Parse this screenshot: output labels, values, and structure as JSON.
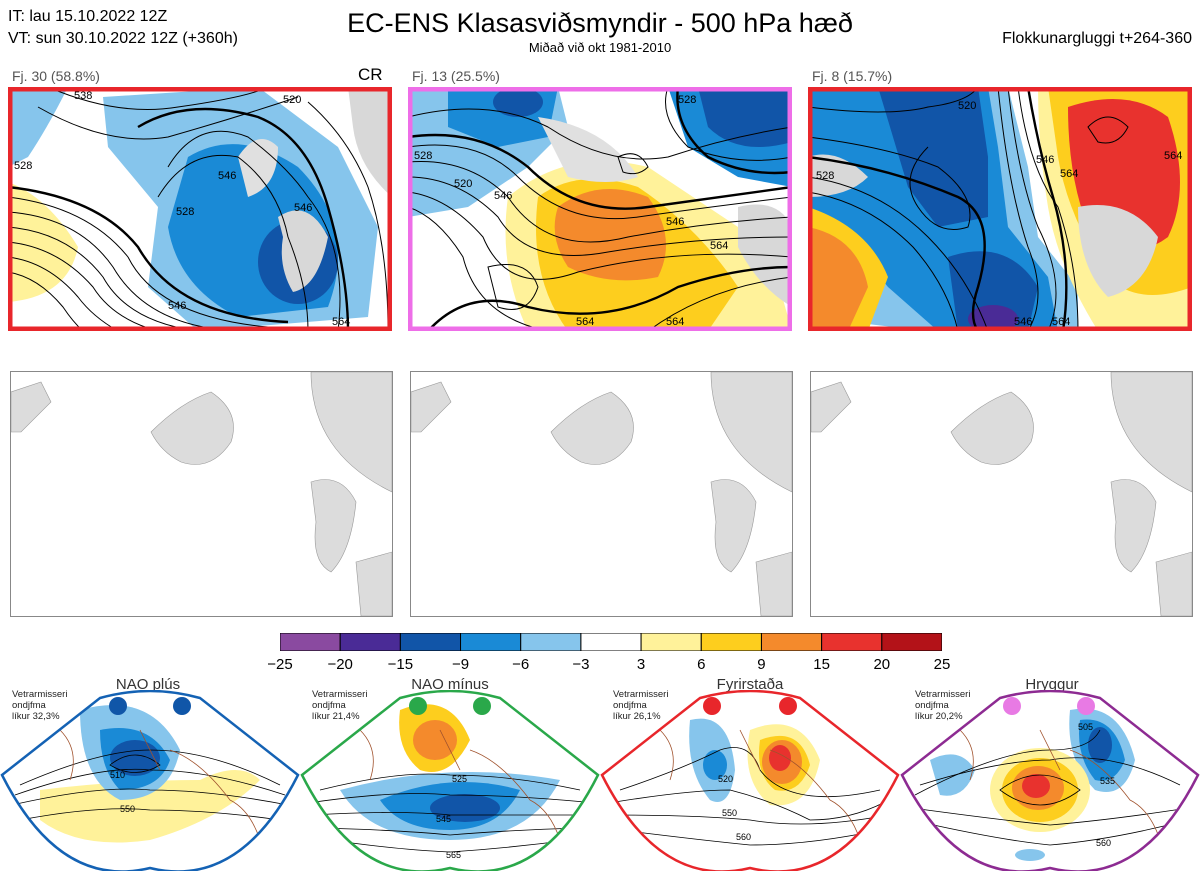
{
  "header": {
    "it_line": "IT: lau 15.10.2022 12Z",
    "vt_line": "VT: sun 30.10.2022 12Z  (+360h)",
    "title": "EC-ENS Klasasviðsmyndir - 500 hPa hæð",
    "subtitle": "Miðað við okt 1981-2010",
    "window": "Flokkunargluggi t+264-360"
  },
  "clusters": [
    {
      "label": "Fj. 30 (58.8%)",
      "tag": "CR",
      "border": "#e8262b"
    },
    {
      "label": "Fj. 13 (25.5%)",
      "tag": "",
      "border": "#ee6ee8"
    },
    {
      "label": "Fj. 8 (15.7%)",
      "tag": "",
      "border": "#e8262b"
    }
  ],
  "contour_labels": {
    "c1": [
      "520",
      "528",
      "528",
      "546",
      "546",
      "546",
      "538",
      "564"
    ],
    "c2": [
      "520",
      "546",
      "546",
      "564",
      "564",
      "528",
      "528",
      "564"
    ],
    "c3": [
      "520",
      "528",
      "546",
      "564",
      "564",
      "546",
      "564"
    ]
  },
  "colorbar": {
    "ticks": [
      "−25",
      "−20",
      "−15",
      "−9",
      "−6",
      "−3",
      "3",
      "6",
      "9",
      "15",
      "20",
      "25"
    ],
    "colors": [
      "#8a4aa0",
      "#4a2b96",
      "#1155a8",
      "#1a8ad6",
      "#86c5ec",
      "#ffffff",
      "#fff29a",
      "#fdce1e",
      "#f48a2c",
      "#e8322e",
      "#b31218"
    ]
  },
  "regimes": [
    {
      "name": "NAO plús",
      "note1": "Vetrarmisseri",
      "note2": "ondjfma",
      "note3": "líkur 32,3%",
      "color": "#1462b4",
      "dot": "#1056a8",
      "labels": [
        "510",
        "550"
      ]
    },
    {
      "name": "NAO mínus",
      "note1": "Vetrarmisseri",
      "note2": "ondjfma",
      "note3": "líkur 21,4%",
      "color": "#2aa84a",
      "dot": "#2aa84a",
      "labels": [
        "525",
        "545",
        "565"
      ]
    },
    {
      "name": "Fyrirstaða",
      "note1": "Vetrarmisseri",
      "note2": "ondjfma",
      "note3": "líkur 26,1%",
      "color": "#e8262b",
      "dot": "#e8262b",
      "labels": [
        "520",
        "550",
        "560"
      ]
    },
    {
      "name": "Hryggur",
      "note1": "Vetrarmisseri",
      "note2": "ondjfma",
      "note3": "líkur 20,2%",
      "color": "#8d2b92",
      "dot": "#e87ae4",
      "labels": [
        "505",
        "535",
        "560"
      ]
    }
  ]
}
